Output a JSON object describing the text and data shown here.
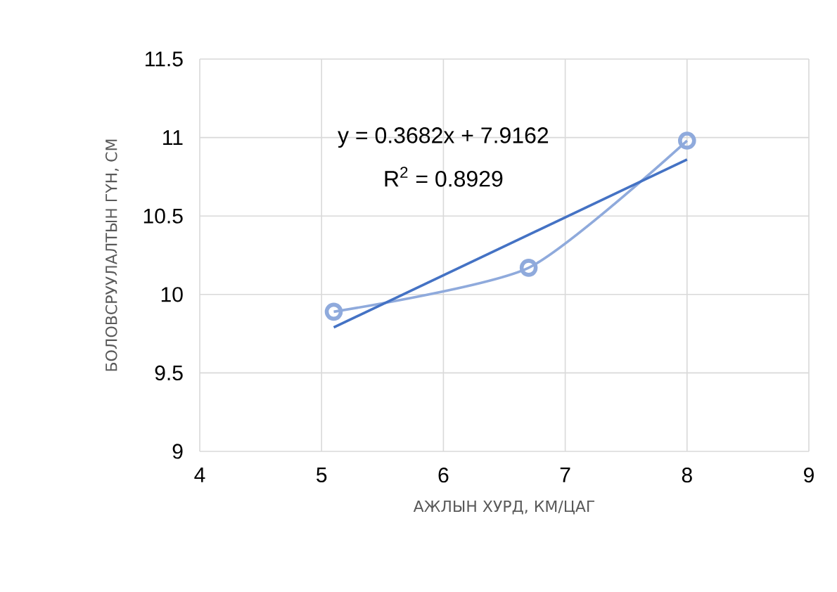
{
  "chart_data": {
    "type": "line",
    "xlabel": "АЖЛЫН ХУРД, КМ/ЦАГ",
    "ylabel": "БОЛОВСРУУЛАЛТЫН ГҮН, СМ",
    "annotations": [
      "y = 0.3682x + 7.9162",
      "R$^{2}$ = 0.8929"
    ],
    "series": [
      {
        "color": "#8faadc",
        "x": [
          5.1,
          6.7,
          8
        ],
        "values": [
          9.89,
          10.17,
          10.98
        ],
        "marker": "circle"
      },
      {
        "type": "line",
        "color": "#4472c4",
        "x": [
          5.1,
          8
        ],
        "values": [
          9.79,
          10.86
        ],
        "marker": "none"
      }
    ],
    "xlim": [
      4,
      9
    ],
    "xticks": [
      4,
      5,
      6,
      7,
      8,
      9
    ],
    "ylim": [
      9,
      11.5
    ],
    "yticks": [
      9,
      9.5,
      10,
      10.5,
      11,
      11.5
    ],
    "grid": true
  }
}
